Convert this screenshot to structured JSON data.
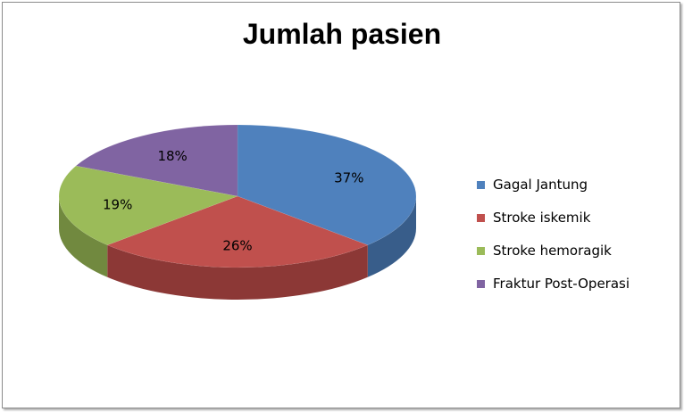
{
  "chart_data": {
    "type": "pie",
    "title": "Jumlah pasien",
    "categories": [
      "Gagal Jantung",
      "Stroke iskemik",
      "Stroke hemoragik",
      "Fraktur Post-Operasi"
    ],
    "values": [
      37,
      26,
      19,
      18
    ],
    "labels": [
      "37%",
      "26%",
      "19%",
      "18%"
    ],
    "colors": [
      "#4f81bd",
      "#c0504d",
      "#9bbb59",
      "#8064a2"
    ],
    "side_colors": [
      "#385d8a",
      "#8c3836",
      "#71893f",
      "#5c4776"
    ],
    "legend": "right"
  }
}
